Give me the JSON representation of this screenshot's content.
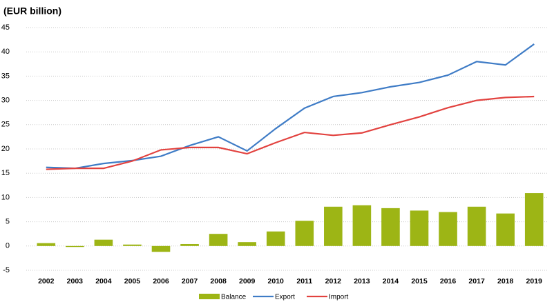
{
  "chart_data": {
    "type": "combo",
    "subtitle": "(EUR billion)",
    "categories": [
      "2002",
      "2003",
      "2004",
      "2005",
      "2006",
      "2007",
      "2008",
      "2009",
      "2010",
      "2011",
      "2012",
      "2013",
      "2014",
      "2015",
      "2016",
      "2017",
      "2018",
      "2019"
    ],
    "series": [
      {
        "name": "Balance",
        "type": "bar",
        "color": "#9db515",
        "values": [
          0.6,
          -0.2,
          1.3,
          0.3,
          -1.2,
          0.4,
          2.5,
          0.8,
          3.0,
          5.2,
          8.1,
          8.4,
          7.8,
          7.3,
          7.0,
          8.1,
          6.7,
          10.9
        ]
      },
      {
        "name": "Export",
        "type": "line",
        "color": "#3f7cc6",
        "values": [
          16.2,
          16.0,
          17.0,
          17.6,
          18.5,
          20.7,
          22.5,
          19.6,
          24.2,
          28.4,
          30.8,
          31.6,
          32.8,
          33.7,
          35.2,
          38.0,
          37.3,
          41.6
        ]
      },
      {
        "name": "Import",
        "type": "line",
        "color": "#e2423f",
        "values": [
          15.8,
          16.0,
          16.0,
          17.5,
          19.8,
          20.3,
          20.3,
          19.0,
          21.3,
          23.4,
          22.8,
          23.3,
          25.0,
          26.6,
          28.5,
          30.0,
          30.6,
          30.8
        ]
      }
    ],
    "ylim": [
      -5,
      45
    ],
    "yticks": [
      -5,
      0,
      5,
      10,
      15,
      20,
      25,
      30,
      35,
      40,
      45
    ],
    "grid": true,
    "legend": "bottom"
  }
}
